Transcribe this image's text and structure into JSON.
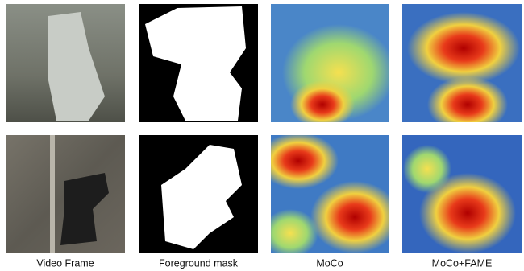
{
  "figure": {
    "columns": [
      "Video Frame",
      "Foreground mask",
      "MoCo",
      "MoCo+FAME"
    ]
  }
}
